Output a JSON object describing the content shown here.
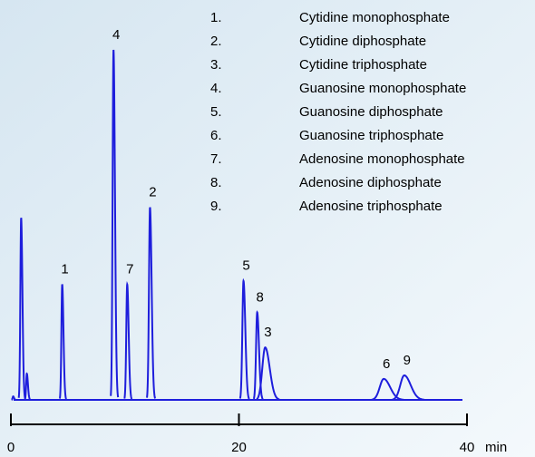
{
  "chart_data": {
    "type": "chromatogram",
    "x_label": "min",
    "xlim": [
      0,
      40
    ],
    "xticks": [
      0,
      20,
      40
    ],
    "ylim": [
      0,
      100
    ],
    "color": "#1e1edc",
    "peaks": {
      "x": [
        0.2,
        0.9,
        1.4,
        4.5,
        9.0,
        10.2,
        12.2,
        20.4,
        21.6,
        22.3,
        32.7,
        34.5
      ],
      "values": [
        1,
        52,
        7.5,
        33,
        100,
        33,
        55,
        34,
        25,
        15,
        6,
        7
      ],
      "widths": [
        0.05,
        0.07,
        0.06,
        0.07,
        0.08,
        0.08,
        0.09,
        0.1,
        0.1,
        0.25,
        0.35,
        0.35
      ],
      "labels": [
        null,
        null,
        null,
        "1",
        "4",
        "7",
        "2",
        "5",
        "8",
        "3",
        "6",
        "9"
      ]
    },
    "legend": [
      {
        "number": "1.",
        "name": "Cytidine monophosphate"
      },
      {
        "number": "2.",
        "name": "Cytidine diphosphate"
      },
      {
        "number": "3.",
        "name": "Cytidine triphosphate"
      },
      {
        "number": "4.",
        "name": "Guanosine monophosphate"
      },
      {
        "number": "5.",
        "name": "Guanosine diphosphate"
      },
      {
        "number": "6.",
        "name": "Guanosine triphosphate"
      },
      {
        "number": "7.",
        "name": "Adenosine monophosphate"
      },
      {
        "number": "8.",
        "name": "Adenosine diphosphate"
      },
      {
        "number": "9.",
        "name": "Adenosine triphosphate"
      }
    ]
  }
}
